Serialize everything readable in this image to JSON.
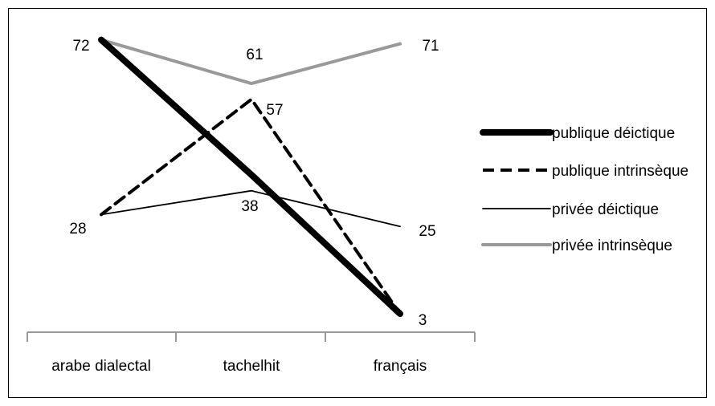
{
  "chart_data": {
    "type": "line",
    "title": "",
    "xlabel": "",
    "ylabel": "",
    "categories": [
      "arabe dialectal",
      "tachelhit",
      "français"
    ],
    "ylim": [
      0,
      75
    ],
    "grid": false,
    "legend_position": "right",
    "series": [
      {
        "name": "publique déictique",
        "values": [
          72,
          38,
          3
        ],
        "color": "#000000",
        "style": "thick-solid"
      },
      {
        "name": "publique intrinsèque",
        "values": [
          28,
          57,
          3
        ],
        "color": "#000000",
        "style": "dashed"
      },
      {
        "name": "privée déictique",
        "values": [
          28,
          34,
          25
        ],
        "color": "#000000",
        "style": "thin-solid"
      },
      {
        "name": "privée intrinsèque",
        "values": [
          72,
          61,
          71
        ],
        "color": "#999999",
        "style": "gray-solid"
      }
    ],
    "data_labels": [
      {
        "category": "arabe dialectal",
        "value": 72,
        "text": "72"
      },
      {
        "category": "arabe dialectal",
        "value": 28,
        "text": "28"
      },
      {
        "category": "tachelhit",
        "value": 61,
        "text": "61"
      },
      {
        "category": "tachelhit",
        "value": 57,
        "text": "57"
      },
      {
        "category": "tachelhit",
        "value": 38,
        "text": "38"
      },
      {
        "category": "français",
        "value": 71,
        "text": "71"
      },
      {
        "category": "français",
        "value": 25,
        "text": "25"
      },
      {
        "category": "français",
        "value": 3,
        "text": "3"
      }
    ]
  }
}
